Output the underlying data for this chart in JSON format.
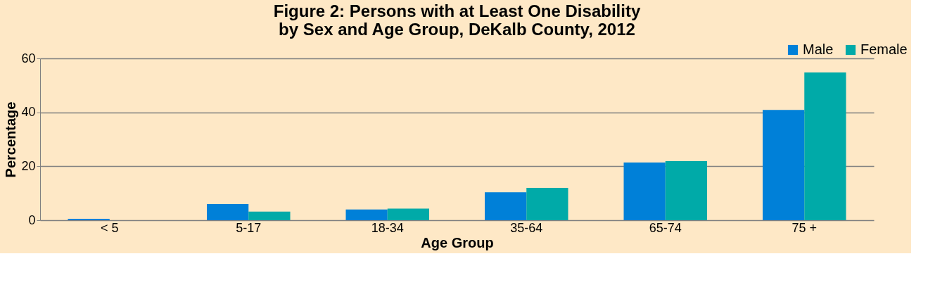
{
  "chart_data": {
    "type": "bar",
    "title": [
      "Figure 2: Persons with at Least One Disability",
      "by Sex and Age Group, DeKalb County, 2012"
    ],
    "xlabel": "Age Group",
    "ylabel": "Percentage",
    "categories": [
      "< 5",
      "5-17",
      "18-34",
      "35-64",
      "65-74",
      "75 +"
    ],
    "series": [
      {
        "name": "Male",
        "color": "#0080d8",
        "values": [
          0.5,
          6.0,
          4.0,
          10.4,
          21.4,
          40.9
        ]
      },
      {
        "name": "Female",
        "color": "#00aaa8",
        "values": [
          null,
          3.2,
          4.3,
          12.0,
          21.9,
          54.8
        ]
      }
    ],
    "ylim": [
      0,
      60
    ],
    "yticks": [
      0,
      20,
      40,
      60
    ],
    "grid": "y",
    "legend": "top right"
  }
}
